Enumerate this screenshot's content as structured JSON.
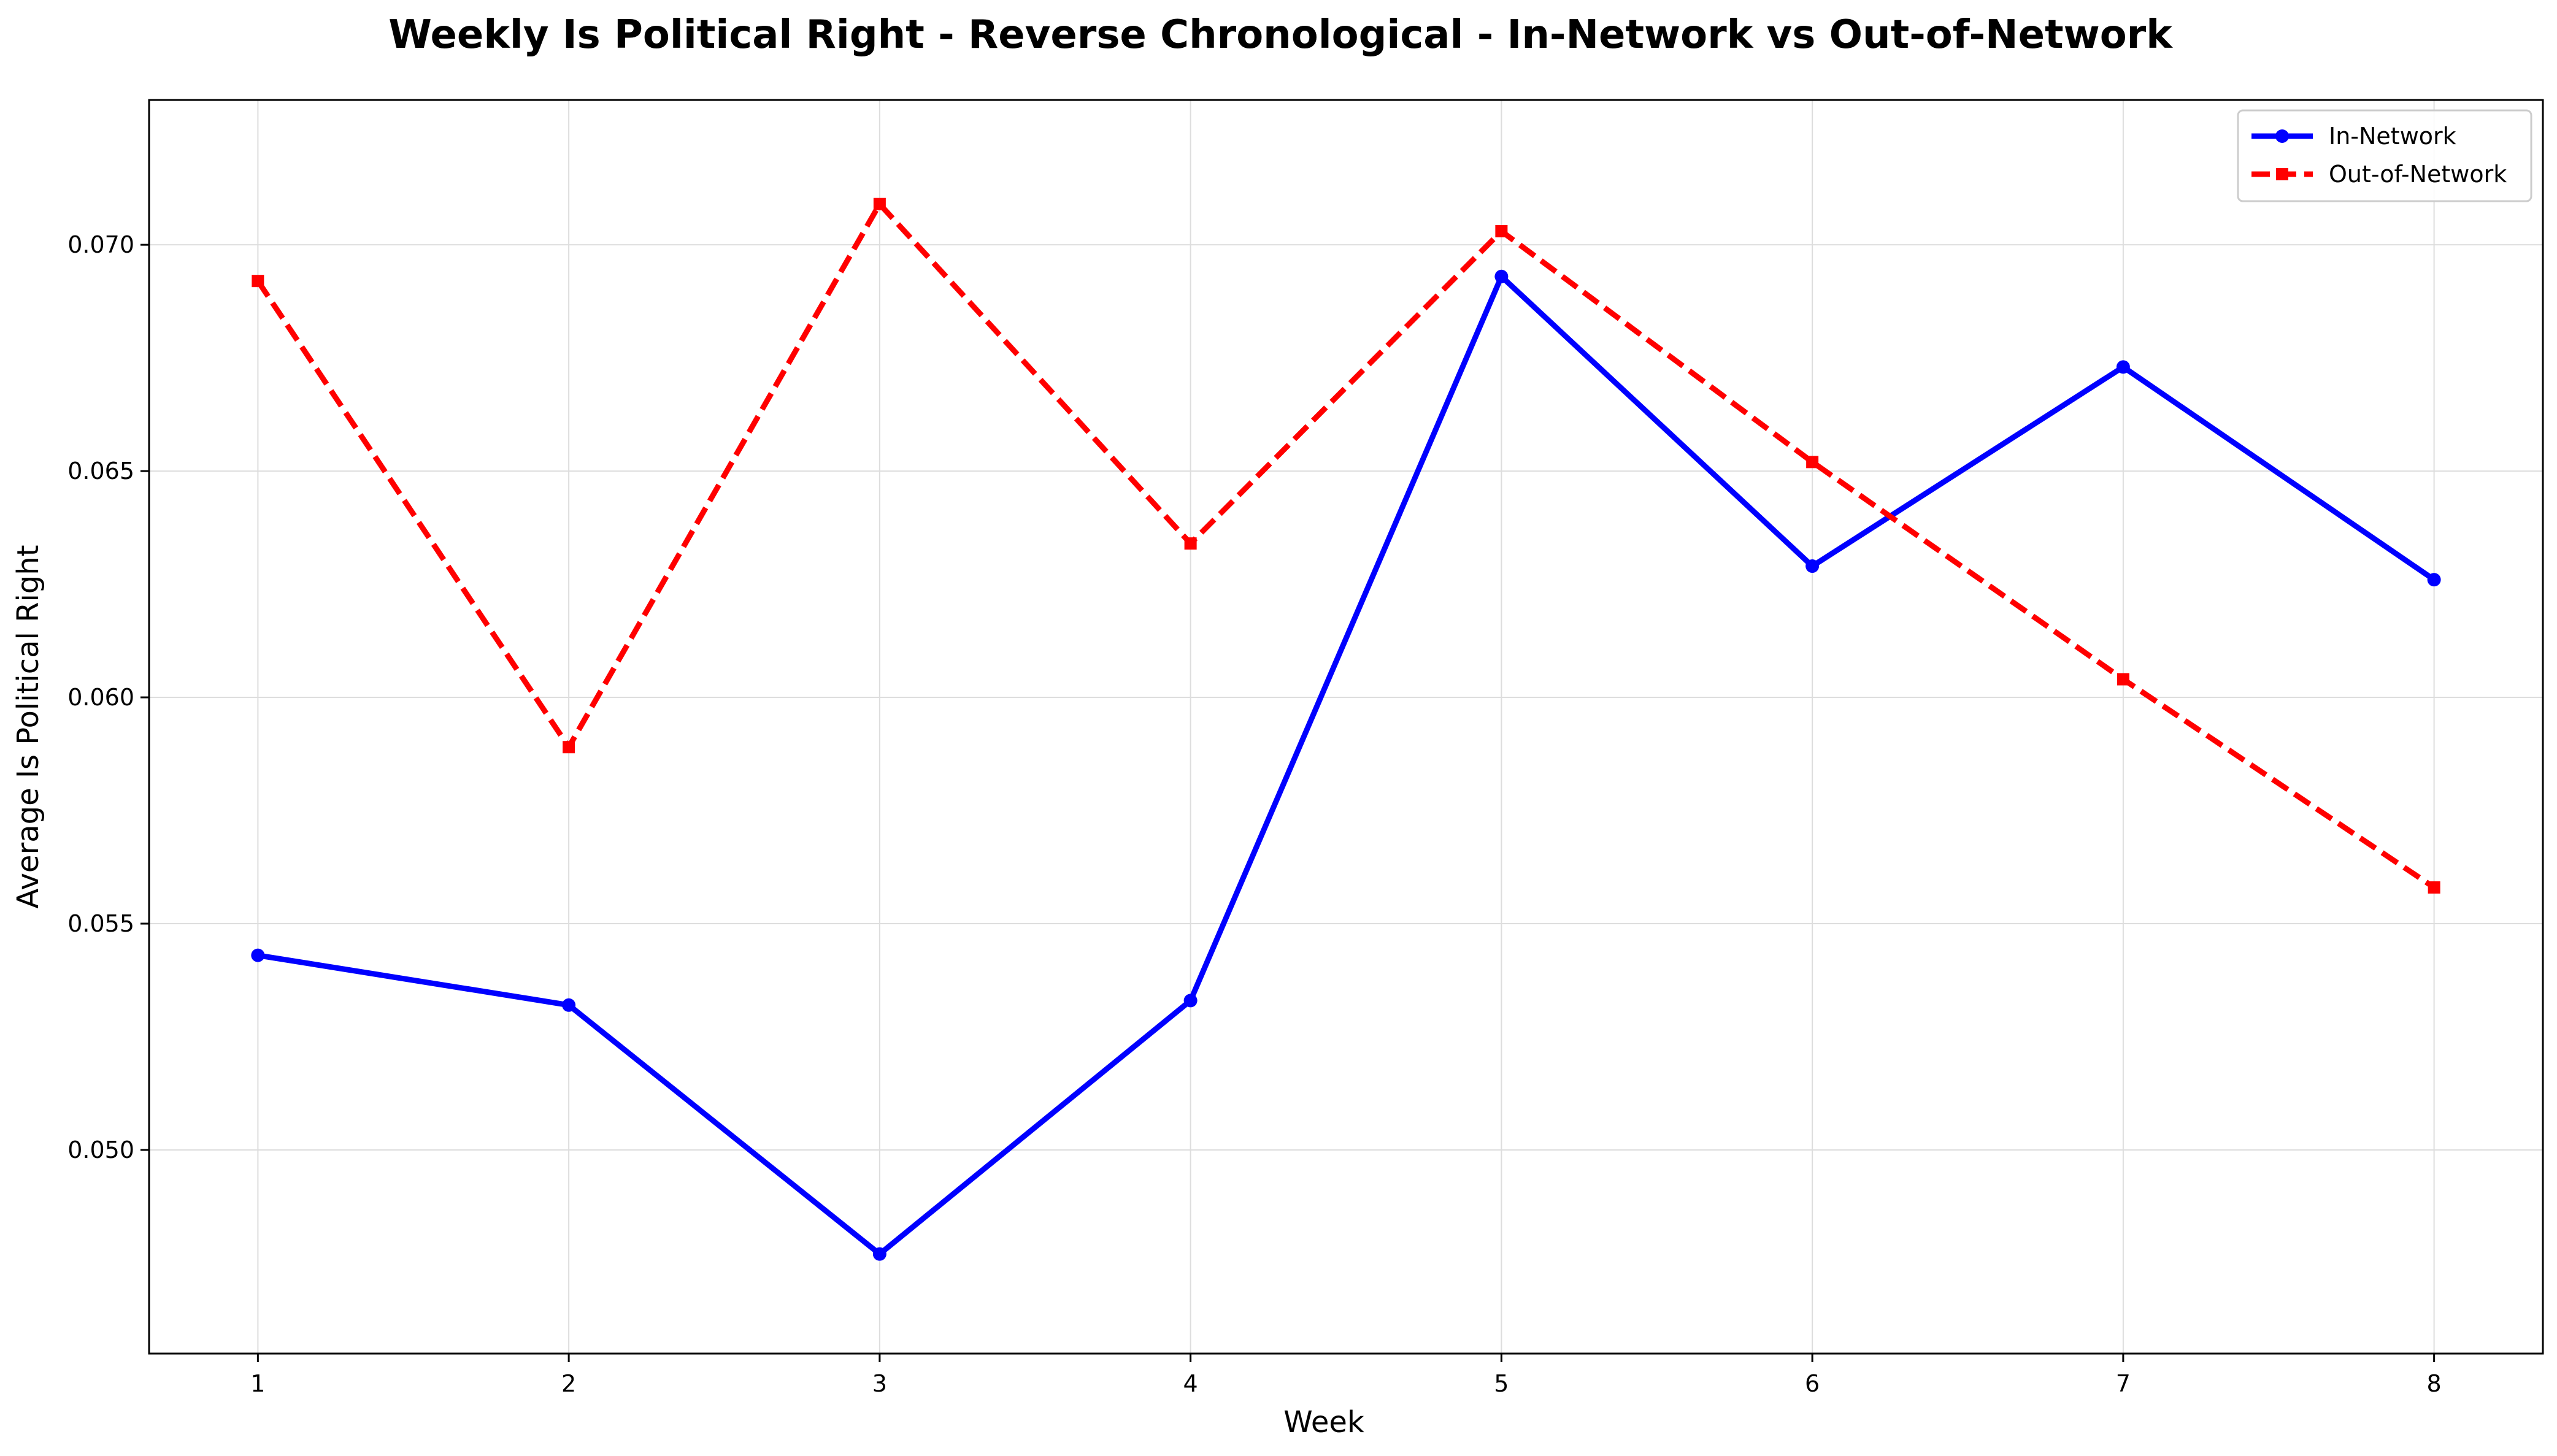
{
  "chart_data": {
    "type": "line",
    "title": "Weekly Is Political Right - Reverse Chronological - In-Network vs Out-of-Network",
    "xlabel": "Week",
    "ylabel": "Average Is Political Right",
    "x": [
      1,
      2,
      3,
      4,
      5,
      6,
      7,
      8
    ],
    "x_tick_labels": [
      "1",
      "2",
      "3",
      "4",
      "5",
      "6",
      "7",
      "8"
    ],
    "y_ticks": [
      0.05,
      0.055,
      0.06,
      0.065,
      0.07
    ],
    "y_tick_labels": [
      "0.050",
      "0.055",
      "0.060",
      "0.065",
      "0.070"
    ],
    "xlim": [
      0.65,
      8.35
    ],
    "ylim": [
      0.0455,
      0.0732
    ],
    "grid": true,
    "legend_position": "top-right",
    "series": [
      {
        "name": "In-Network",
        "color": "#0000ff",
        "line_style": "solid",
        "marker": "circle",
        "values": [
          0.0543,
          0.0532,
          0.0477,
          0.0533,
          0.0693,
          0.0629,
          0.0673,
          0.0626
        ]
      },
      {
        "name": "Out-of-Network",
        "color": "#ff0000",
        "line_style": "dashed",
        "marker": "square",
        "values": [
          0.0692,
          0.0589,
          0.0709,
          0.0634,
          0.0703,
          0.0652,
          0.0604,
          0.0558
        ]
      }
    ]
  }
}
